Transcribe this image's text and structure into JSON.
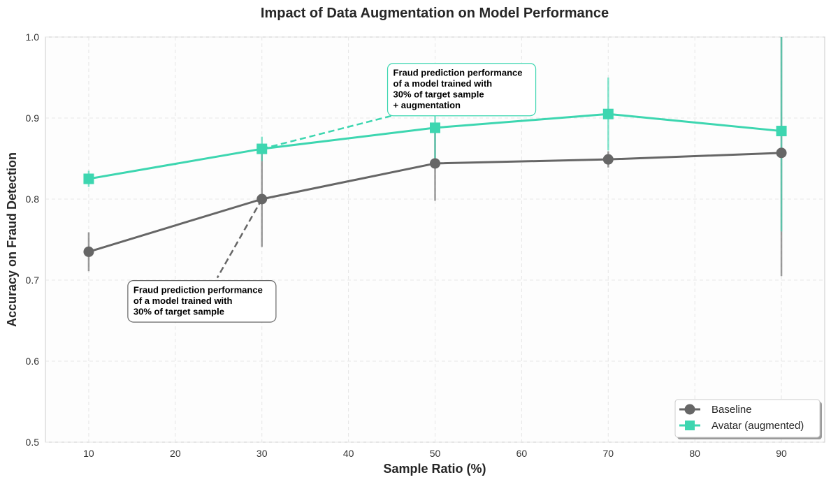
{
  "chart_data": {
    "type": "line",
    "title": "Impact of Data Augmentation on Model Performance",
    "xlabel": "Sample Ratio (%)",
    "ylabel": "Accuracy on Fraud Detection",
    "xlim": [
      5,
      95
    ],
    "ylim": [
      0.5,
      1.0
    ],
    "xticks": [
      10,
      20,
      30,
      40,
      50,
      60,
      70,
      80,
      90
    ],
    "yticks": [
      0.5,
      0.6,
      0.7,
      0.8,
      0.9,
      1.0
    ],
    "xtick_labels": [
      "10",
      "20",
      "30",
      "40",
      "50",
      "60",
      "70",
      "80",
      "90"
    ],
    "ytick_labels": [
      "0.5",
      "0.6",
      "0.7",
      "0.8",
      "0.9",
      "1.0"
    ],
    "grid": true,
    "legend_position": "bottom-right",
    "x": [
      10,
      30,
      50,
      70,
      90
    ],
    "series": [
      {
        "name": "Baseline",
        "marker": "circle",
        "color": "#666666",
        "values": [
          0.735,
          0.8,
          0.844,
          0.849,
          0.857
        ],
        "err_low": [
          0.711,
          0.741,
          0.798,
          0.839,
          0.705
        ],
        "err_high": [
          0.759,
          0.859,
          0.89,
          0.859,
          1.009
        ]
      },
      {
        "name": "Avatar (augmented)",
        "marker": "square",
        "color": "#3dd6b0",
        "values": [
          0.825,
          0.862,
          0.888,
          0.905,
          0.884
        ],
        "err_low": [
          0.815,
          0.847,
          0.85,
          0.86,
          0.76
        ],
        "err_high": [
          0.835,
          0.877,
          0.926,
          0.95,
          1.008
        ]
      }
    ],
    "annotations": [
      {
        "name": "baseline-annotation",
        "lines": [
          "Fraud prediction performance",
          "of a model trained with",
          "30% of target sample"
        ],
        "target": [
          30,
          0.8
        ],
        "text_at": [
          15,
          0.69
        ],
        "color": "#666666"
      },
      {
        "name": "augmented-annotation",
        "lines": [
          "Fraud prediction performance",
          "of a model trained with",
          "30% of target sample",
          "+ augmentation"
        ],
        "target": [
          30,
          0.862
        ],
        "text_at": [
          45,
          0.958
        ],
        "color": "#3dd6b0"
      }
    ]
  }
}
